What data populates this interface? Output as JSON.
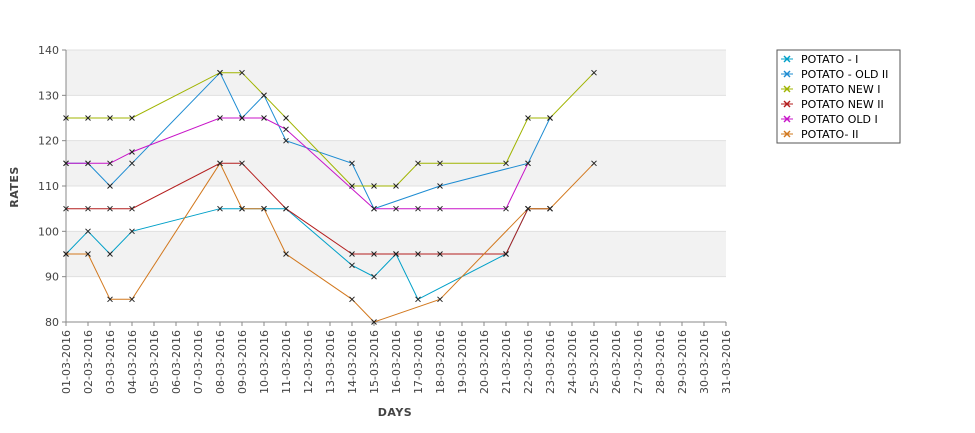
{
  "chart_data": {
    "type": "line",
    "title": "",
    "xlabel": "DAYS",
    "ylabel": "RATES",
    "ylim": [
      80,
      140
    ],
    "yticks": [
      80,
      90,
      100,
      110,
      120,
      130,
      140
    ],
    "grid": "alternating horizontal bands",
    "legend_position": "top-right",
    "categories": [
      "01-03-2016",
      "02-03-2016",
      "03-03-2016",
      "04-03-2016",
      "05-03-2016",
      "06-03-2016",
      "07-03-2016",
      "08-03-2016",
      "09-03-2016",
      "10-03-2016",
      "11-03-2016",
      "12-03-2016",
      "13-03-2016",
      "14-03-2016",
      "15-03-2016",
      "16-03-2016",
      "17-03-2016",
      "18-03-2016",
      "19-03-2016",
      "20-03-2016",
      "21-03-2016",
      "22-03-2016",
      "23-03-2016",
      "24-03-2016",
      "25-03-2016",
      "26-03-2016",
      "27-03-2016",
      "28-03-2016",
      "29-03-2016",
      "30-03-2016",
      "31-03-2016"
    ],
    "series": [
      {
        "name": "POTATO - I",
        "color": "#00A0C8",
        "values": [
          95,
          100,
          95,
          100,
          null,
          null,
          null,
          105,
          105,
          105,
          105,
          null,
          null,
          92.5,
          90,
          95,
          85,
          null,
          null,
          null,
          95,
          105,
          105,
          null,
          null,
          null,
          null,
          null,
          null,
          null,
          null
        ]
      },
      {
        "name": "POTATO - OLD II",
        "color": "#1E8CD2",
        "values": [
          115,
          115,
          110,
          115,
          null,
          null,
          null,
          135,
          125,
          130,
          120,
          null,
          null,
          115,
          105,
          null,
          null,
          110,
          null,
          null,
          null,
          115,
          125,
          null,
          null,
          null,
          null,
          null,
          null,
          null,
          null
        ]
      },
      {
        "name": "POTATO NEW I",
        "color": "#A0B400",
        "values": [
          125,
          125,
          125,
          125,
          null,
          null,
          null,
          135,
          135,
          130,
          125,
          null,
          null,
          110,
          110,
          110,
          115,
          115,
          null,
          null,
          115,
          125,
          125,
          null,
          135,
          null,
          null,
          null,
          null,
          null,
          null
        ]
      },
      {
        "name": "POTATO NEW II",
        "color": "#B41E1E",
        "values": [
          105,
          105,
          105,
          105,
          null,
          null,
          null,
          115,
          115,
          null,
          105,
          null,
          null,
          95,
          95,
          95,
          95,
          95,
          null,
          null,
          95,
          105,
          105,
          null,
          null,
          null,
          null,
          null,
          null,
          null,
          null
        ]
      },
      {
        "name": "POTATO OLD I",
        "color": "#C814C8",
        "values": [
          115,
          115,
          115,
          117.5,
          null,
          null,
          null,
          125,
          125,
          125,
          122.5,
          null,
          null,
          null,
          105,
          105,
          105,
          105,
          null,
          null,
          105,
          115,
          null,
          null,
          null,
          null,
          null,
          null,
          null,
          null,
          null
        ]
      },
      {
        "name": "POTATO- II",
        "color": "#D2781E",
        "values": [
          95,
          95,
          85,
          85,
          null,
          null,
          null,
          115,
          105,
          105,
          95,
          null,
          null,
          85,
          80,
          null,
          null,
          85,
          null,
          null,
          null,
          105,
          105,
          null,
          115,
          null,
          null,
          null,
          null,
          null,
          null
        ]
      }
    ]
  }
}
